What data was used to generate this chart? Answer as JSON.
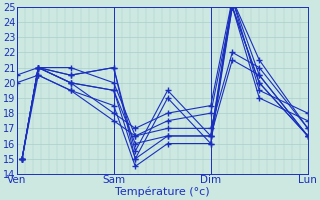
{
  "title": "Température (°c)",
  "bg_color": "#cce8e0",
  "grid_color": "#aacfca",
  "line_color": "#1a2fc0",
  "ylim": [
    14,
    25
  ],
  "yticks": [
    14,
    15,
    16,
    17,
    18,
    19,
    20,
    21,
    22,
    23,
    24,
    25
  ],
  "xlim": [
    0,
    108
  ],
  "day_positions": [
    0,
    36,
    72,
    108
  ],
  "day_labels": [
    "Ven",
    "Sam",
    "Dim",
    "Lun"
  ],
  "series": [
    {
      "x": [
        2,
        8,
        20,
        36,
        44,
        56,
        72,
        80,
        90,
        108
      ],
      "y": [
        15.0,
        21.0,
        21.0,
        20.0,
        16.5,
        17.0,
        17.0,
        22.0,
        21.0,
        17.0
      ]
    },
    {
      "x": [
        2,
        8,
        20,
        36,
        44,
        56,
        72,
        80,
        90,
        108
      ],
      "y": [
        15.0,
        21.0,
        20.0,
        19.5,
        16.0,
        16.5,
        16.5,
        21.5,
        20.5,
        16.5
      ]
    },
    {
      "x": [
        2,
        8,
        20,
        36,
        44,
        56,
        72,
        80,
        90,
        108
      ],
      "y": [
        15.0,
        21.0,
        20.0,
        19.5,
        15.0,
        16.5,
        16.5,
        25.0,
        20.0,
        16.5
      ]
    },
    {
      "x": [
        2,
        8,
        20,
        36,
        44,
        56,
        72,
        80,
        90,
        108
      ],
      "y": [
        15.0,
        20.5,
        19.5,
        18.5,
        14.5,
        16.0,
        16.0,
        25.5,
        20.5,
        16.5
      ]
    },
    {
      "x": [
        0,
        8,
        20,
        36,
        44,
        56,
        72,
        80,
        90,
        108
      ],
      "y": [
        20.5,
        21.0,
        20.0,
        18.0,
        17.0,
        18.0,
        18.5,
        25.5,
        19.5,
        18.0
      ]
    },
    {
      "x": [
        0,
        8,
        20,
        36,
        44,
        56,
        72,
        80,
        90,
        108
      ],
      "y": [
        20.0,
        20.5,
        19.5,
        17.5,
        16.5,
        17.5,
        18.0,
        25.0,
        19.0,
        17.5
      ]
    },
    {
      "x": [
        2,
        8,
        20,
        36,
        44,
        56,
        72,
        80,
        90,
        108
      ],
      "y": [
        15.0,
        21.0,
        20.5,
        21.0,
        15.0,
        19.0,
        16.0,
        25.0,
        20.0,
        16.5
      ]
    },
    {
      "x": [
        2,
        8,
        20,
        36,
        44,
        56,
        72,
        80,
        90,
        108
      ],
      "y": [
        15.0,
        21.0,
        20.5,
        21.0,
        15.5,
        19.5,
        16.5,
        25.5,
        21.5,
        17.0
      ]
    }
  ]
}
